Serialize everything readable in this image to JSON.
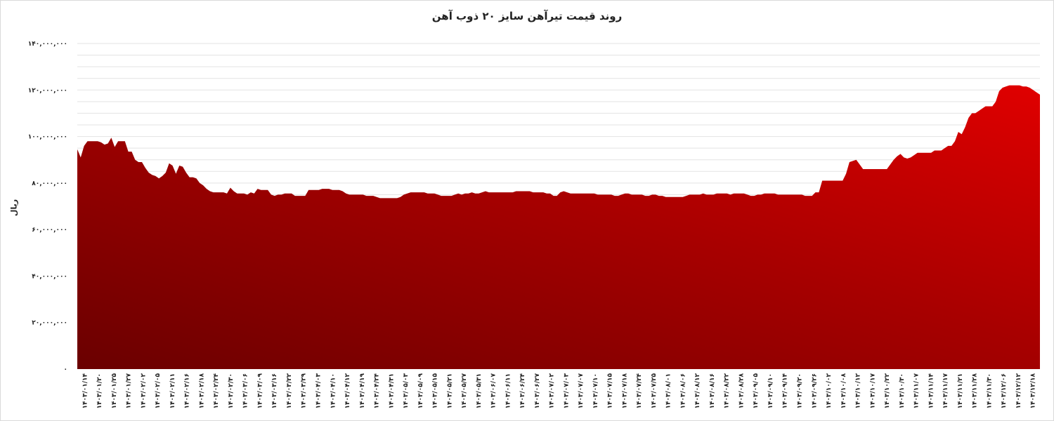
{
  "chart_data": {
    "type": "area",
    "title": "روند قیمت تیرآهن سایز ۲۰ ذوب آهن",
    "xlabel": "",
    "ylabel": "ریال",
    "ylim": [
      0,
      140000000
    ],
    "y_ticks": [
      0,
      20000000,
      40000000,
      60000000,
      80000000,
      100000000,
      120000000,
      140000000
    ],
    "y_tick_labels": [
      "۰",
      "۲۰,۰۰۰,۰۰۰",
      "۴۰,۰۰۰,۰۰۰",
      "۶۰,۰۰۰,۰۰۰",
      "۸۰,۰۰۰,۰۰۰",
      "۱۰۰,۰۰۰,۰۰۰",
      "۱۲۰,۰۰۰,۰۰۰",
      "۱۴۰,۰۰۰,۰۰۰"
    ],
    "x_tick_labels": [
      "۱۴۰۳/۰۱/۱۴",
      "۱۴۰۳/۰۱/۲۰",
      "۱۴۰۳/۰۱/۲۵",
      "۱۴۰۳/۰۱/۲۷",
      "۱۴۰۳/۰۲/۰۲",
      "۱۴۰۳/۰۲/۰۵",
      "۱۴۰۳/۰۲/۱۱",
      "۱۴۰۳/۰۲/۱۶",
      "۱۴۰۳/۰۲/۱۸",
      "۱۴۰۳/۰۲/۲۴",
      "۱۴۰۳/۰۲/۳۰",
      "۱۴۰۳/۰۳/۰۶",
      "۱۴۰۳/۰۳/۰۹",
      "۱۴۰۳/۰۳/۱۶",
      "۱۴۰۳/۰۳/۲۲",
      "۱۴۰۳/۰۳/۲۹",
      "۱۴۰۳/۰۴/۰۳",
      "۱۴۰۳/۰۴/۱۰",
      "۱۴۰۳/۰۴/۱۲",
      "۱۴۰۳/۰۴/۱۹",
      "۱۴۰۳/۰۴/۲۴",
      "۱۴۰۳/۰۴/۳۱",
      "۱۴۰۳/۰۵/۰۳",
      "۱۴۰۳/۰۵/۰۹",
      "۱۴۰۳/۰۵/۱۵",
      "۱۴۰۳/۰۵/۲۱",
      "۱۴۰۳/۰۵/۲۷",
      "۱۴۰۳/۰۵/۳۱",
      "۱۴۰۳/۰۶/۰۷",
      "۱۴۰۳/۰۶/۱۱",
      "۱۴۰۳/۰۶/۲۴",
      "۱۴۰۳/۰۶/۲۷",
      "۱۴۰۳/۰۷/۰۲",
      "۱۴۰۳/۰۷/۰۳",
      "۱۴۰۳/۰۷/۰۷",
      "۱۴۰۳/۰۷/۱۰",
      "۱۴۰۳/۰۷/۱۵",
      "۱۴۰۳/۰۷/۱۸",
      "۱۴۰۳/۰۷/۲۴",
      "۱۴۰۳/۰۷/۲۵",
      "۱۴۰۳/۰۸/۰۱",
      "۱۴۰۳/۰۸/۰۶",
      "۱۴۰۳/۰۸/۱۲",
      "۱۴۰۳/۰۸/۱۶",
      "۱۴۰۳/۰۸/۲۲",
      "۱۴۰۳/۰۸/۲۸",
      "۱۴۰۳/۰۹/۰۵",
      "۱۴۰۳/۰۹/۱۰",
      "۱۴۰۳/۰۹/۱۴",
      "۱۴۰۳/۰۹/۲۰",
      "۱۴۰۳/۰۹/۲۶",
      "۱۴۰۳/۱۰/۰۲",
      "۱۴۰۳/۱۰/۰۸",
      "۱۴۰۳/۱۰/۱۲",
      "۱۴۰۳/۱۰/۱۷",
      "۱۴۰۳/۱۰/۲۲",
      "۱۴۰۳/۱۰/۳۰",
      "۱۴۰۳/۱۱/۰۷",
      "۱۴۰۳/۱۱/۱۴",
      "۱۴۰۳/۱۱/۱۷",
      "۱۴۰۳/۱۱/۲۱",
      "۱۴۰۳/۱۱/۲۸",
      "۱۴۰۳/۱۱/۳۰",
      "۱۴۰۳/۱۲/۰۶",
      "۱۴۰۳/۱۲/۱۲",
      "۱۴۰۳/۱۲/۱۸"
    ],
    "values": [
      94500000,
      91000000,
      96000000,
      98000000,
      98000000,
      98000000,
      98000000,
      97500000,
      96500000,
      97000000,
      99500000,
      95500000,
      98000000,
      98000000,
      98000000,
      93500000,
      93500000,
      90000000,
      89000000,
      89000000,
      86500000,
      84500000,
      83500000,
      83000000,
      82000000,
      83000000,
      84500000,
      88500000,
      87500000,
      84000000,
      87500000,
      87000000,
      84500000,
      82500000,
      82500000,
      82000000,
      80000000,
      79000000,
      77500000,
      76500000,
      76000000,
      76000000,
      76000000,
      76000000,
      75500000,
      78000000,
      76500000,
      75500000,
      75500000,
      75500000,
      75000000,
      76000000,
      75500000,
      77500000,
      77000000,
      77000000,
      77000000,
      75000000,
      74500000,
      75000000,
      75000000,
      75500000,
      75500000,
      75500000,
      74500000,
      74500000,
      74500000,
      74500000,
      77000000,
      77000000,
      77000000,
      77000000,
      77500000,
      77500000,
      77500000,
      77000000,
      77000000,
      77000000,
      76500000,
      75500000,
      75000000,
      75000000,
      75000000,
      75000000,
      75000000,
      74500000,
      74500000,
      74500000,
      74000000,
      73500000,
      73500000,
      73500000,
      73500000,
      73500000,
      73500000,
      74000000,
      75000000,
      75500000,
      76000000,
      76000000,
      76000000,
      76000000,
      76000000,
      75500000,
      75500000,
      75500000,
      75000000,
      74500000,
      74500000,
      74500000,
      74500000,
      75000000,
      75500000,
      75000000,
      75500000,
      75500000,
      76000000,
      75500000,
      75500000,
      76000000,
      76500000,
      76000000,
      76000000,
      76000000,
      76000000,
      76000000,
      76000000,
      76000000,
      76000000,
      76500000,
      76500000,
      76500000,
      76500000,
      76500000,
      76000000,
      76000000,
      76000000,
      76000000,
      75500000,
      75500000,
      74500000,
      74500000,
      76000000,
      76500000,
      76000000,
      75500000,
      75500000,
      75500000,
      75500000,
      75500000,
      75500000,
      75500000,
      75500000,
      75000000,
      75000000,
      75000000,
      75000000,
      75000000,
      74500000,
      74500000,
      75000000,
      75500000,
      75500000,
      75000000,
      75000000,
      75000000,
      75000000,
      74500000,
      74500000,
      75000000,
      75000000,
      74500000,
      74500000,
      74000000,
      74000000,
      74000000,
      74000000,
      74000000,
      74000000,
      74500000,
      75000000,
      75000000,
      75000000,
      75000000,
      75500000,
      75000000,
      75000000,
      75000000,
      75500000,
      75500000,
      75500000,
      75500000,
      75000000,
      75500000,
      75500000,
      75500000,
      75500000,
      75000000,
      74500000,
      74500000,
      75000000,
      75000000,
      75500000,
      75500000,
      75500000,
      75500000,
      75000000,
      75000000,
      75000000,
      75000000,
      75000000,
      75000000,
      75000000,
      75000000,
      74500000,
      74500000,
      74500000,
      76000000,
      76000000,
      81000000,
      81000000,
      81000000,
      81000000,
      81000000,
      81000000,
      81000000,
      84000000,
      89000000,
      89500000,
      90000000,
      88000000,
      86000000,
      86000000,
      86000000,
      86000000,
      86000000,
      86000000,
      86000000,
      86000000,
      88000000,
      90000000,
      91500000,
      92500000,
      91000000,
      90500000,
      91000000,
      92000000,
      93000000,
      93000000,
      93000000,
      93000000,
      93000000,
      94000000,
      94000000,
      94000000,
      95000000,
      96000000,
      96000000,
      98000000,
      102000000,
      101000000,
      104000000,
      108000000,
      110000000,
      110000000,
      111000000,
      112000000,
      113000000,
      113000000,
      113000000,
      115000000,
      119500000,
      121000000,
      121500000,
      122000000,
      122000000,
      122000000,
      122000000,
      121500000,
      121500000,
      121000000,
      120000000,
      119000000,
      118000000
    ]
  }
}
